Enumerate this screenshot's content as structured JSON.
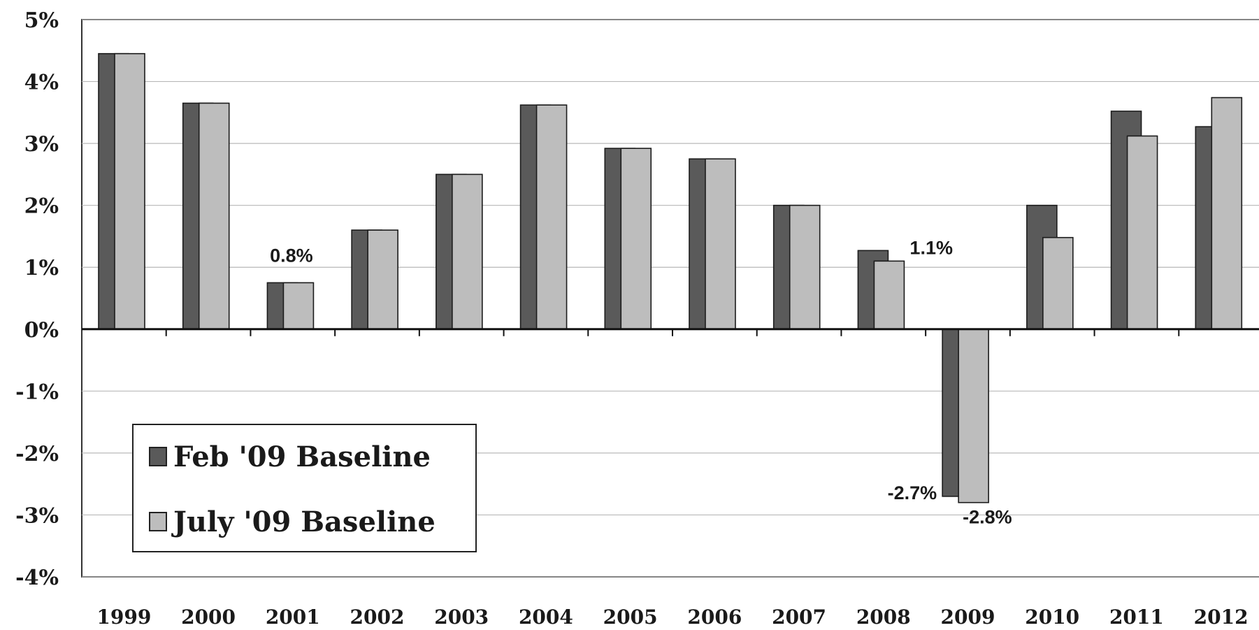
{
  "chart_data": {
    "type": "bar",
    "categories": [
      "1999",
      "2000",
      "2001",
      "2002",
      "2003",
      "2004",
      "2005",
      "2006",
      "2007",
      "2008",
      "2009",
      "2010",
      "2011",
      "2012"
    ],
    "series": [
      {
        "name": "Feb '09 Baseline",
        "values": [
          4.45,
          3.65,
          0.75,
          1.6,
          2.5,
          3.62,
          2.92,
          2.75,
          2.0,
          1.27,
          -2.7,
          2.0,
          3.52,
          3.27
        ],
        "color": "#5a5a5a"
      },
      {
        "name": "July '09 Baseline",
        "values": [
          4.45,
          3.65,
          0.75,
          1.6,
          2.5,
          3.62,
          2.92,
          2.75,
          2.0,
          1.1,
          -2.8,
          1.48,
          3.12,
          3.74
        ],
        "color": "#bdbdbd"
      }
    ],
    "ylim": [
      -4,
      5
    ],
    "yticks": [
      "5%",
      "4%",
      "3%",
      "2%",
      "1%",
      "0%",
      "-1%",
      "-2%",
      "-3%",
      "-4%"
    ],
    "ytick_values": [
      5,
      4,
      3,
      2,
      1,
      0,
      -1,
      -2,
      -3,
      -4
    ],
    "annotations": [
      {
        "text": "0.8%",
        "category": "2001",
        "series": 1
      },
      {
        "text": "1.1%",
        "category": "2008",
        "series": 1
      },
      {
        "text": "-2.7%",
        "category": "2009",
        "series": 0
      },
      {
        "text": "-2.8%",
        "category": "2009",
        "series": 1
      }
    ],
    "grid": true,
    "legend_position": "bottom-left",
    "title": "",
    "xlabel": "",
    "ylabel": ""
  }
}
